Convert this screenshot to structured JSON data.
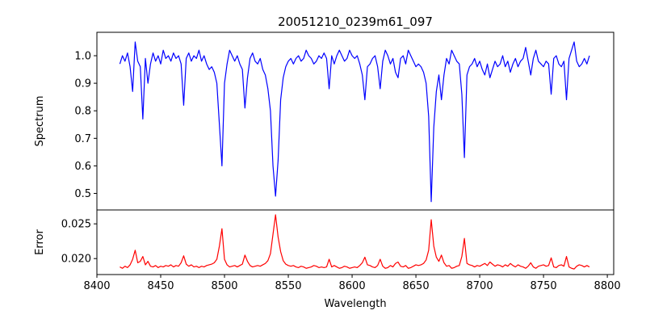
{
  "chart_data": [
    {
      "type": "line",
      "title": "20051210_0239m61_097",
      "xlabel": "",
      "ylabel": "Spectrum",
      "xlim": [
        8400,
        8805
      ],
      "ylim": [
        0.44,
        1.085
      ],
      "xticks": [
        8400,
        8450,
        8500,
        8550,
        8600,
        8650,
        8700,
        8750,
        8800
      ],
      "yticks": [
        0.5,
        0.6,
        0.7,
        0.8,
        0.9,
        1.0
      ],
      "ytick_labels": [
        "0.5",
        "0.6",
        "0.7",
        "0.8",
        "0.9",
        "1.0"
      ],
      "series": [
        {
          "color": "#0000ff",
          "x": [
            8418,
            8420,
            8422,
            8424,
            8426,
            8428,
            8430,
            8432,
            8434,
            8436,
            8438,
            8440,
            8442,
            8444,
            8446,
            8448,
            8450,
            8452,
            8454,
            8456,
            8458,
            8460,
            8462,
            8464,
            8466,
            8468,
            8470,
            8472,
            8474,
            8476,
            8478,
            8480,
            8482,
            8484,
            8486,
            8488,
            8490,
            8492,
            8494,
            8496,
            8498,
            8500,
            8502,
            8504,
            8506,
            8508,
            8510,
            8512,
            8514,
            8516,
            8518,
            8520,
            8522,
            8524,
            8526,
            8528,
            8530,
            8532,
            8534,
            8536,
            8538,
            8540,
            8542,
            8544,
            8546,
            8548,
            8550,
            8552,
            8554,
            8556,
            8558,
            8560,
            8562,
            8564,
            8566,
            8568,
            8570,
            8572,
            8574,
            8576,
            8578,
            8580,
            8582,
            8584,
            8586,
            8588,
            8590,
            8592,
            8594,
            8596,
            8598,
            8600,
            8602,
            8604,
            8606,
            8608,
            8610,
            8612,
            8614,
            8616,
            8618,
            8620,
            8622,
            8624,
            8626,
            8628,
            8630,
            8632,
            8634,
            8636,
            8638,
            8640,
            8642,
            8644,
            8646,
            8648,
            8650,
            8652,
            8654,
            8656,
            8658,
            8660,
            8662,
            8664,
            8666,
            8668,
            8670,
            8672,
            8674,
            8676,
            8678,
            8680,
            8682,
            8684,
            8686,
            8688,
            8690,
            8692,
            8694,
            8696,
            8698,
            8700,
            8702,
            8704,
            8706,
            8708,
            8710,
            8712,
            8714,
            8716,
            8718,
            8720,
            8722,
            8724,
            8726,
            8728,
            8730,
            8732,
            8734,
            8736,
            8738,
            8740,
            8742,
            8744,
            8746,
            8748,
            8750,
            8752,
            8754,
            8756,
            8758,
            8760,
            8762,
            8764,
            8766,
            8768,
            8770,
            8772,
            8774,
            8776,
            8778,
            8780,
            8782,
            8784,
            8786
          ],
          "y": [
            0.97,
            1.0,
            0.98,
            1.01,
            0.96,
            0.87,
            1.05,
            0.98,
            0.96,
            0.77,
            0.99,
            0.9,
            0.97,
            1.01,
            0.98,
            1.0,
            0.97,
            1.02,
            0.99,
            1.0,
            0.98,
            1.01,
            0.99,
            1.0,
            0.97,
            0.82,
            0.99,
            1.01,
            0.98,
            1.0,
            0.99,
            1.02,
            0.98,
            1.0,
            0.97,
            0.95,
            0.96,
            0.94,
            0.9,
            0.75,
            0.6,
            0.9,
            0.97,
            1.02,
            1.0,
            0.98,
            1.0,
            0.97,
            0.95,
            0.81,
            0.92,
            0.99,
            1.01,
            0.98,
            0.97,
            0.99,
            0.95,
            0.93,
            0.88,
            0.8,
            0.6,
            0.49,
            0.62,
            0.84,
            0.92,
            0.96,
            0.98,
            0.99,
            0.97,
            0.99,
            1.0,
            0.98,
            0.99,
            1.02,
            1.0,
            0.99,
            0.97,
            0.98,
            1.0,
            0.99,
            1.01,
            0.99,
            0.88,
            1.0,
            0.97,
            1.0,
            1.02,
            1.0,
            0.98,
            0.99,
            1.02,
            1.0,
            0.99,
            1.0,
            0.97,
            0.93,
            0.84,
            0.96,
            0.97,
            0.99,
            1.0,
            0.96,
            0.88,
            0.98,
            1.02,
            1.0,
            0.97,
            0.99,
            0.94,
            0.92,
            0.99,
            1.0,
            0.97,
            1.02,
            1.0,
            0.98,
            0.96,
            0.97,
            0.96,
            0.94,
            0.9,
            0.78,
            0.47,
            0.74,
            0.87,
            0.93,
            0.84,
            0.93,
            0.99,
            0.97,
            1.02,
            1.0,
            0.98,
            0.97,
            0.86,
            0.63,
            0.93,
            0.96,
            0.97,
            0.99,
            0.96,
            0.98,
            0.95,
            0.93,
            0.97,
            0.92,
            0.95,
            0.98,
            0.96,
            0.97,
            1.0,
            0.96,
            0.98,
            0.94,
            0.97,
            0.99,
            0.96,
            0.98,
            0.99,
            1.03,
            0.98,
            0.93,
            0.99,
            1.02,
            0.98,
            0.97,
            0.96,
            0.98,
            0.97,
            0.86,
            0.99,
            1.0,
            0.97,
            0.96,
            0.98,
            0.84,
            0.99,
            1.02,
            1.05,
            0.98,
            0.96,
            0.97,
            0.99,
            0.97,
            1.0
          ]
        }
      ]
    },
    {
      "type": "line",
      "title": "",
      "xlabel": "Wavelength",
      "ylabel": "Error",
      "xlim": [
        8400,
        8805
      ],
      "ylim": [
        0.0177,
        0.027
      ],
      "xticks": [
        8400,
        8450,
        8500,
        8550,
        8600,
        8650,
        8700,
        8750,
        8800
      ],
      "xtick_labels": [
        "8400",
        "8450",
        "8500",
        "8550",
        "8600",
        "8650",
        "8700",
        "8750",
        "8800"
      ],
      "yticks": [
        0.02,
        0.025
      ],
      "ytick_labels": [
        "0.020",
        "0.025"
      ],
      "series": [
        {
          "color": "#ff0000",
          "x": [
            8418,
            8420,
            8422,
            8424,
            8426,
            8428,
            8430,
            8432,
            8434,
            8436,
            8438,
            8440,
            8442,
            8444,
            8446,
            8448,
            8450,
            8452,
            8454,
            8456,
            8458,
            8460,
            8462,
            8464,
            8466,
            8468,
            8470,
            8472,
            8474,
            8476,
            8478,
            8480,
            8482,
            8484,
            8486,
            8488,
            8490,
            8492,
            8494,
            8496,
            8498,
            8500,
            8502,
            8504,
            8506,
            8508,
            8510,
            8512,
            8514,
            8516,
            8518,
            8520,
            8522,
            8524,
            8526,
            8528,
            8530,
            8532,
            8534,
            8536,
            8538,
            8540,
            8542,
            8544,
            8546,
            8548,
            8550,
            8552,
            8554,
            8556,
            8558,
            8560,
            8562,
            8564,
            8566,
            8568,
            8570,
            8572,
            8574,
            8576,
            8578,
            8580,
            8582,
            8584,
            8586,
            8588,
            8590,
            8592,
            8594,
            8596,
            8598,
            8600,
            8602,
            8604,
            8606,
            8608,
            8610,
            8612,
            8614,
            8616,
            8618,
            8620,
            8622,
            8624,
            8626,
            8628,
            8630,
            8632,
            8634,
            8636,
            8638,
            8640,
            8642,
            8644,
            8646,
            8648,
            8650,
            8652,
            8654,
            8656,
            8658,
            8660,
            8662,
            8664,
            8666,
            8668,
            8670,
            8672,
            8674,
            8676,
            8678,
            8680,
            8682,
            8684,
            8686,
            8688,
            8690,
            8692,
            8694,
            8696,
            8698,
            8700,
            8702,
            8704,
            8706,
            8708,
            8710,
            8712,
            8714,
            8716,
            8718,
            8720,
            8722,
            8724,
            8726,
            8728,
            8730,
            8732,
            8734,
            8736,
            8738,
            8740,
            8742,
            8744,
            8746,
            8748,
            8750,
            8752,
            8754,
            8756,
            8758,
            8760,
            8762,
            8764,
            8766,
            8768,
            8770,
            8772,
            8774,
            8776,
            8778,
            8780,
            8782,
            8784,
            8786
          ],
          "y": [
            0.0188,
            0.0186,
            0.0189,
            0.0187,
            0.0191,
            0.0199,
            0.0212,
            0.0194,
            0.0196,
            0.0203,
            0.0191,
            0.0196,
            0.0189,
            0.0188,
            0.019,
            0.0187,
            0.0189,
            0.0188,
            0.019,
            0.0189,
            0.0191,
            0.0188,
            0.019,
            0.0189,
            0.0194,
            0.0204,
            0.0192,
            0.0189,
            0.0191,
            0.0188,
            0.0189,
            0.0187,
            0.0189,
            0.0188,
            0.019,
            0.0191,
            0.0192,
            0.0194,
            0.0199,
            0.0218,
            0.0243,
            0.0199,
            0.0191,
            0.0188,
            0.0189,
            0.019,
            0.0188,
            0.019,
            0.0192,
            0.0205,
            0.0196,
            0.019,
            0.0188,
            0.0189,
            0.019,
            0.0189,
            0.0191,
            0.0193,
            0.0197,
            0.0207,
            0.0235,
            0.0263,
            0.0231,
            0.021,
            0.0197,
            0.0192,
            0.019,
            0.0189,
            0.019,
            0.0188,
            0.0187,
            0.0189,
            0.0188,
            0.0186,
            0.0187,
            0.0188,
            0.019,
            0.0189,
            0.0187,
            0.0188,
            0.0187,
            0.0188,
            0.0199,
            0.0188,
            0.019,
            0.0188,
            0.0186,
            0.0187,
            0.0189,
            0.0188,
            0.0186,
            0.0187,
            0.0188,
            0.0187,
            0.019,
            0.0194,
            0.0202,
            0.0191,
            0.019,
            0.0188,
            0.0187,
            0.019,
            0.0199,
            0.0189,
            0.0186,
            0.0187,
            0.019,
            0.0188,
            0.0193,
            0.0195,
            0.0189,
            0.0188,
            0.019,
            0.0186,
            0.0187,
            0.0189,
            0.0191,
            0.019,
            0.0191,
            0.0193,
            0.0198,
            0.0212,
            0.0256,
            0.0218,
            0.0202,
            0.0196,
            0.0205,
            0.0194,
            0.0189,
            0.019,
            0.0186,
            0.0187,
            0.0189,
            0.019,
            0.0203,
            0.0229,
            0.0193,
            0.0191,
            0.019,
            0.0188,
            0.019,
            0.0189,
            0.0191,
            0.0193,
            0.019,
            0.0195,
            0.0192,
            0.0189,
            0.0191,
            0.019,
            0.0188,
            0.0191,
            0.0189,
            0.0193,
            0.019,
            0.0188,
            0.0191,
            0.0189,
            0.0188,
            0.0186,
            0.0189,
            0.0194,
            0.0188,
            0.0186,
            0.0189,
            0.019,
            0.0191,
            0.0189,
            0.019,
            0.0201,
            0.0188,
            0.0187,
            0.019,
            0.0191,
            0.0189,
            0.0203,
            0.0188,
            0.0186,
            0.0185,
            0.0189,
            0.0191,
            0.019,
            0.0188,
            0.019,
            0.0188
          ]
        }
      ]
    }
  ]
}
